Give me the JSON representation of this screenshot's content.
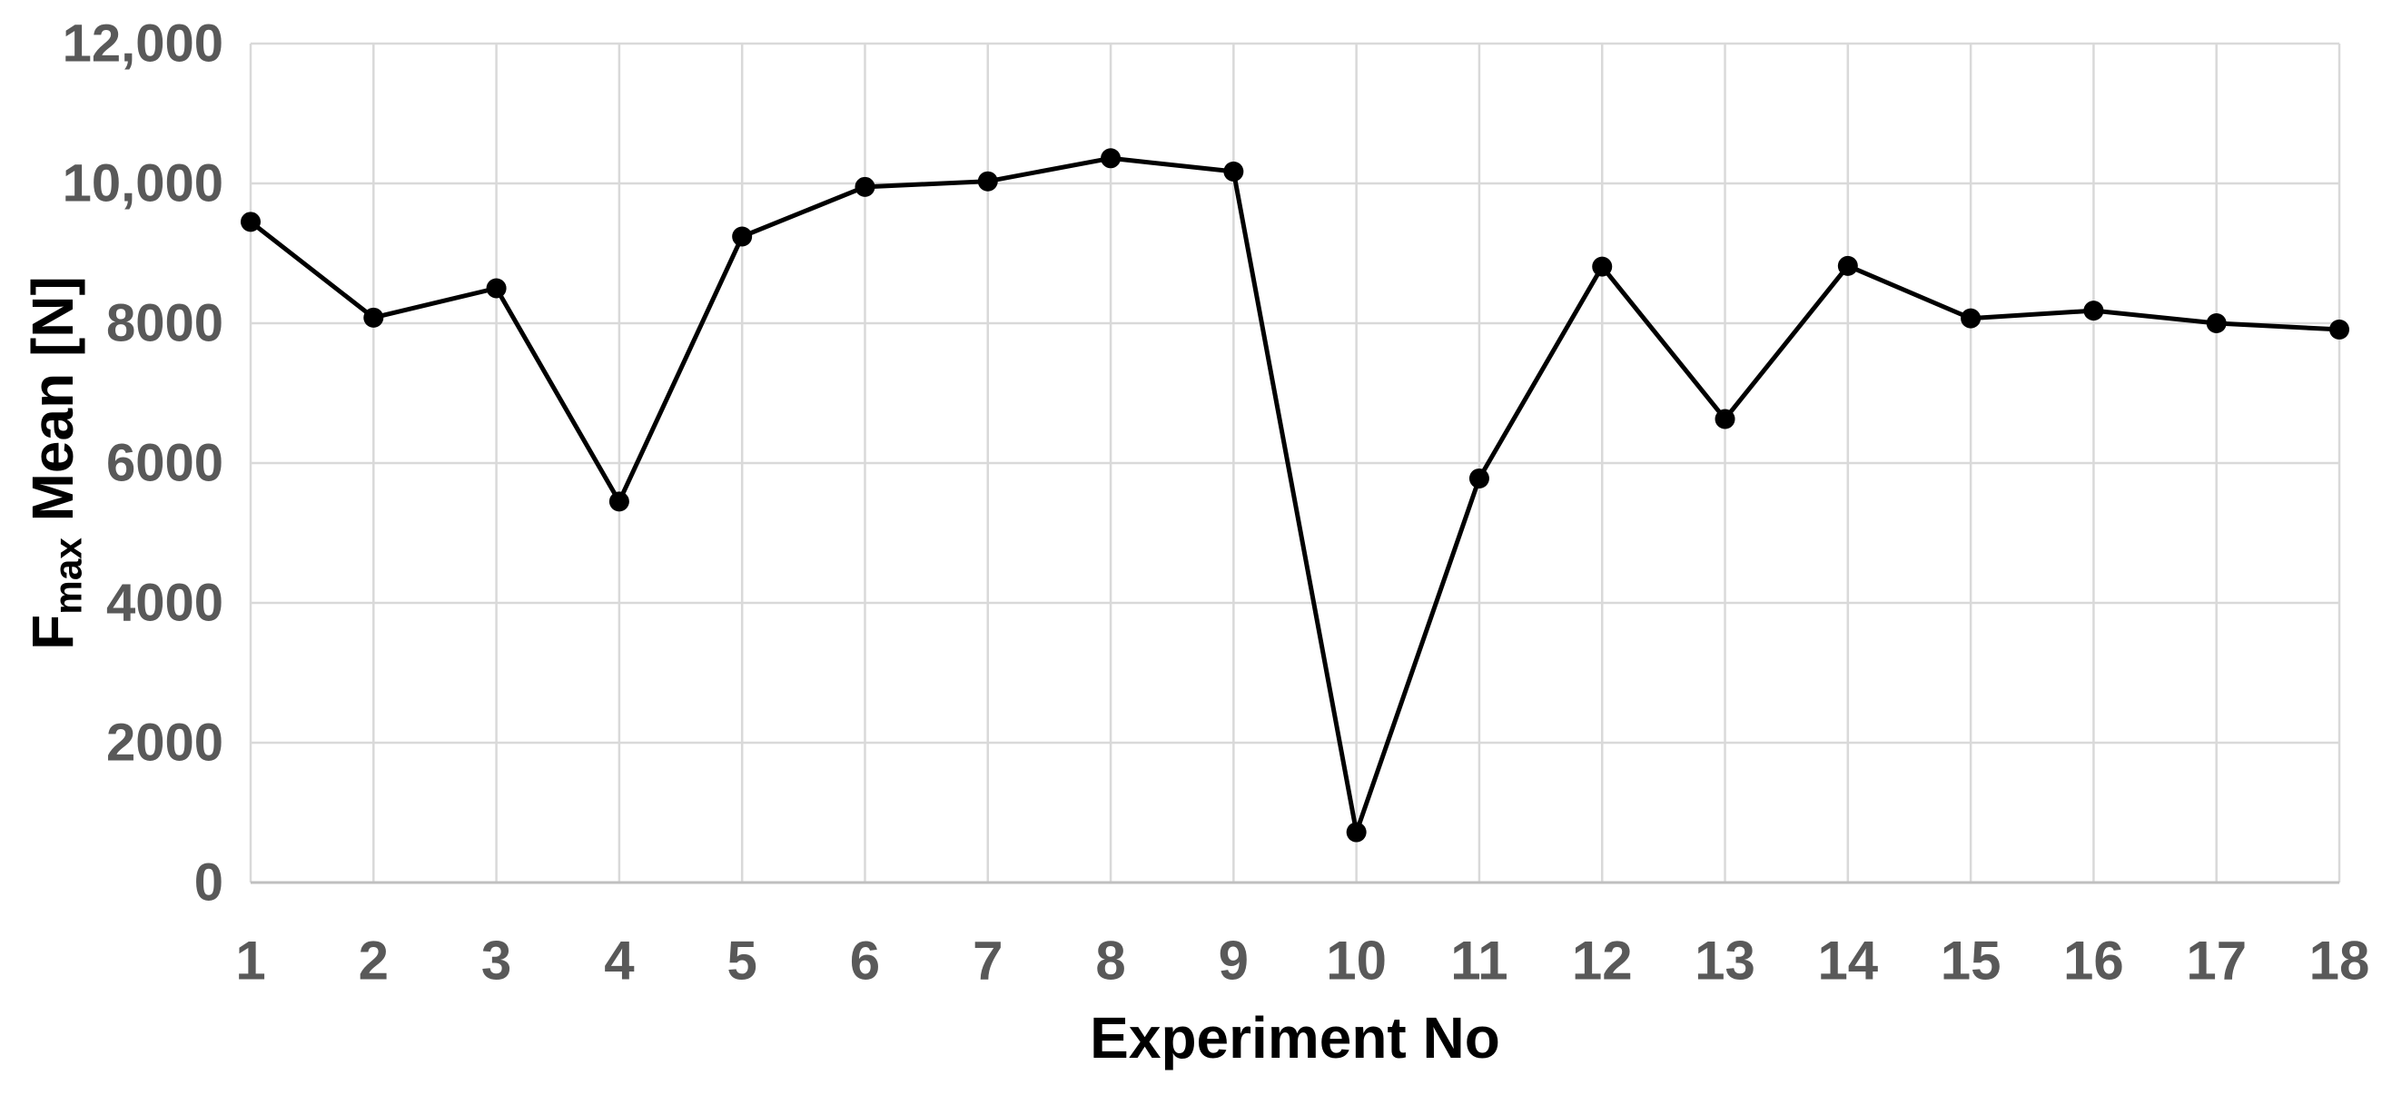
{
  "chart_data": {
    "type": "line",
    "title": "",
    "xlabel": "Experiment No",
    "ylabel": {
      "prefix": "F",
      "subscript": "max",
      "suffix": " Mean [N]"
    },
    "categories": [
      1,
      2,
      3,
      4,
      5,
      6,
      7,
      8,
      9,
      10,
      11,
      12,
      13,
      14,
      15,
      16,
      17,
      18
    ],
    "series": [
      {
        "values": [
          9450,
          8080,
          8500,
          5450,
          9240,
          9950,
          10030,
          10360,
          10170,
          720,
          5780,
          8810,
          6630,
          8820,
          8070,
          8180,
          8000,
          7910
        ],
        "line_color": "#000000",
        "marker": "filled-circle"
      }
    ],
    "ylim": [
      0,
      12000
    ],
    "ytick_interval": 2000,
    "ytick_labels": [
      "0",
      "2000",
      "4000",
      "6000",
      "8000",
      "10,000",
      "12,000"
    ],
    "grid": {
      "horizontal": true,
      "vertical": true,
      "color": "#D9D9D9"
    },
    "axis_line_color": "#BFBFBF",
    "tick_label_color": "#595959",
    "axis_title_color": "#000000",
    "legend": "none"
  }
}
